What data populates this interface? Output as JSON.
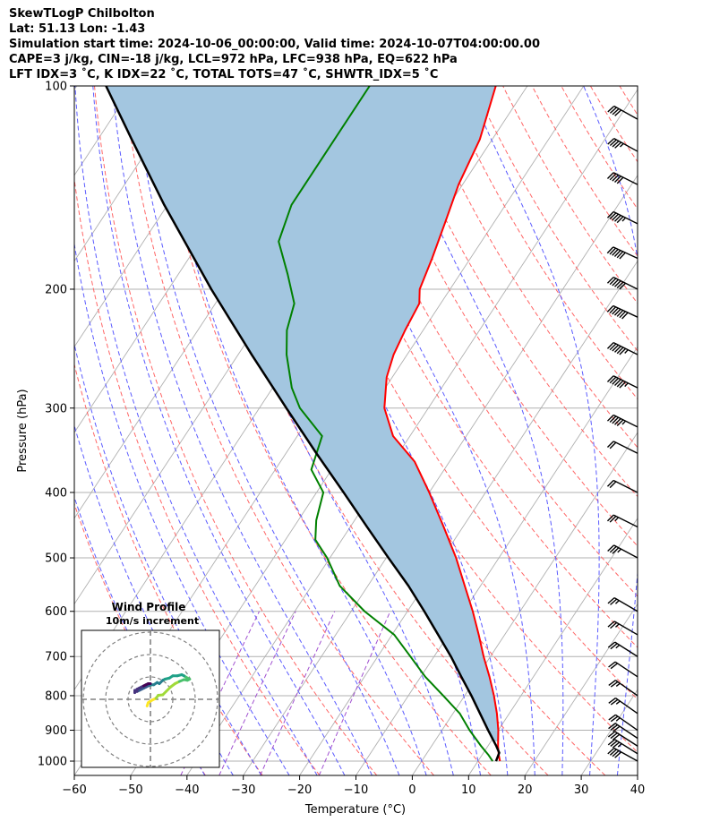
{
  "header": {
    "line1": "SkewTLogP Chilbolton",
    "line2": "Lat: 51.13   Lon: -1.43",
    "line3": "Simulation start time: 2024-10-06_00:00:00, Valid time: 2024-10-07T04:00:00.00",
    "line4": "CAPE=3 j/kg, CIN=-18 j/kg, LCL=972 hPa, LFC=938 hPa, EQ=622 hPa",
    "line5": "LFT IDX=3 ˚C, K IDX=22 ˚C, TOTAL TOTS=47 ˚C, SHWTR_IDX=5 ˚C"
  },
  "chart_data": {
    "type": "line",
    "subtype": "skew-t log-p",
    "xlabel": "Temperature ($^\\circ$C)",
    "ylabel": "Pressure (hPa)",
    "xlim": [
      -60,
      40
    ],
    "ylim": [
      1050,
      100
    ],
    "yscale": "log",
    "x_ticks": [
      "−60",
      "−50",
      "−40",
      "−30",
      "−20",
      "−10",
      "0",
      "10",
      "20",
      "30",
      "40"
    ],
    "y_ticks": [
      {
        "p": 100,
        "label": "100"
      },
      {
        "p": 200,
        "label": "200"
      },
      {
        "p": 300,
        "label": "300"
      },
      {
        "p": 400,
        "label": "400"
      },
      {
        "p": 500,
        "label": "500"
      },
      {
        "p": 600,
        "label": "600"
      },
      {
        "p": 700,
        "label": "700"
      },
      {
        "p": 800,
        "label": "800"
      },
      {
        "p": 900,
        "label": "900"
      },
      {
        "p": 1000,
        "label": "1000"
      }
    ],
    "grid": true,
    "colors": {
      "temperature": "#ff0000",
      "dewpoint": "#008000",
      "parcel": "#000000",
      "cape_fill": "#a3c6e0",
      "dry_adiabats": "#ff6666",
      "moist_adiabats": "#5b5bff",
      "mixing_ratio": "#a050d0",
      "isotherms": "#b0b0b0"
    },
    "series": [
      {
        "key": "temperature",
        "points": [
          [
            1000,
            13.9
          ],
          [
            980,
            13.0
          ],
          [
            950,
            11.8
          ],
          [
            900,
            10.0
          ],
          [
            850,
            7.8
          ],
          [
            800,
            5.2
          ],
          [
            750,
            2.2
          ],
          [
            700,
            -1.2
          ],
          [
            650,
            -4.6
          ],
          [
            600,
            -8.4
          ],
          [
            550,
            -12.8
          ],
          [
            500,
            -17.6
          ],
          [
            450,
            -23.4
          ],
          [
            400,
            -30.0
          ],
          [
            360,
            -36.2
          ],
          [
            330,
            -43.0
          ],
          [
            300,
            -47.8
          ],
          [
            270,
            -51.0
          ],
          [
            250,
            -52.4
          ],
          [
            230,
            -53.2
          ],
          [
            210,
            -53.8
          ],
          [
            200,
            -55.4
          ],
          [
            180,
            -56.8
          ],
          [
            160,
            -58.6
          ],
          [
            140,
            -60.7
          ],
          [
            120,
            -62.2
          ],
          [
            100,
            -65.6
          ]
        ]
      },
      {
        "key": "dewpoint",
        "points": [
          [
            1000,
            12.6
          ],
          [
            980,
            11.2
          ],
          [
            950,
            8.8
          ],
          [
            900,
            4.9
          ],
          [
            850,
            1.2
          ],
          [
            800,
            -3.8
          ],
          [
            750,
            -9.2
          ],
          [
            700,
            -14.2
          ],
          [
            650,
            -19.6
          ],
          [
            600,
            -27.6
          ],
          [
            550,
            -35.0
          ],
          [
            500,
            -40.5
          ],
          [
            470,
            -44.7
          ],
          [
            440,
            -46.8
          ],
          [
            400,
            -48.8
          ],
          [
            370,
            -53.6
          ],
          [
            330,
            -55.6
          ],
          [
            300,
            -62.8
          ],
          [
            280,
            -66.6
          ],
          [
            250,
            -71.4
          ],
          [
            230,
            -74.2
          ],
          [
            210,
            -76.0
          ],
          [
            190,
            -80.6
          ],
          [
            170,
            -86.0
          ],
          [
            150,
            -88.0
          ],
          [
            130,
            -88.0
          ],
          [
            110,
            -88.0
          ],
          [
            100,
            -88.0
          ]
        ]
      },
      {
        "key": "parcel",
        "points": [
          [
            1000,
            13.2
          ],
          [
            972,
            12.8
          ],
          [
            950,
            11.5
          ],
          [
            900,
            8.2
          ],
          [
            850,
            4.8
          ],
          [
            800,
            1.2
          ],
          [
            750,
            -2.8
          ],
          [
            700,
            -7.0
          ],
          [
            650,
            -11.8
          ],
          [
            600,
            -17.0
          ],
          [
            550,
            -22.8
          ],
          [
            500,
            -29.6
          ],
          [
            450,
            -37.0
          ],
          [
            400,
            -45.2
          ],
          [
            350,
            -54.6
          ],
          [
            300,
            -65.2
          ],
          [
            250,
            -77.6
          ],
          [
            200,
            -92.4
          ],
          [
            150,
            -110.6
          ],
          [
            120,
            -124.0
          ],
          [
            100,
            -134.8
          ]
        ]
      }
    ],
    "wind_barbs": [
      {
        "p": 1000,
        "u": -18,
        "v": 10
      },
      {
        "p": 975,
        "u": -16,
        "v": 10
      },
      {
        "p": 950,
        "u": -14,
        "v": 9
      },
      {
        "p": 925,
        "u": -12,
        "v": 8
      },
      {
        "p": 900,
        "u": -10,
        "v": 7
      },
      {
        "p": 850,
        "u": -10,
        "v": 7
      },
      {
        "p": 800,
        "u": -10,
        "v": 7
      },
      {
        "p": 750,
        "u": -9,
        "v": 6
      },
      {
        "p": 700,
        "u": -11,
        "v": 7
      },
      {
        "p": 650,
        "u": -12,
        "v": 7
      },
      {
        "p": 600,
        "u": -12,
        "v": 7
      },
      {
        "p": 500,
        "u": -15,
        "v": 8
      },
      {
        "p": 450,
        "u": -12,
        "v": 6
      },
      {
        "p": 400,
        "u": -10,
        "v": 5
      },
      {
        "p": 350,
        "u": -10,
        "v": 5
      },
      {
        "p": 320,
        "u": -26,
        "v": 13
      },
      {
        "p": 280,
        "u": -30,
        "v": 15
      },
      {
        "p": 250,
        "u": -30,
        "v": 15
      },
      {
        "p": 220,
        "u": -32,
        "v": 15
      },
      {
        "p": 200,
        "u": -28,
        "v": 14
      },
      {
        "p": 180,
        "u": -28,
        "v": 13
      },
      {
        "p": 160,
        "u": -26,
        "v": 13
      },
      {
        "p": 140,
        "u": -24,
        "v": 12
      },
      {
        "p": 125,
        "u": -20,
        "v": 11
      },
      {
        "p": 112,
        "u": -18,
        "v": 10
      }
    ],
    "hodograph": {
      "title": "Wind Profile",
      "subtitle": "10m/s increment",
      "rings": [
        10,
        20,
        30
      ],
      "points": [
        [
          -1.5,
          -3.0
        ],
        [
          -1.0,
          -1.5
        ],
        [
          0.5,
          -0.5
        ],
        [
          2.5,
          0.5
        ],
        [
          3.5,
          1.8
        ],
        [
          5.5,
          2.0
        ],
        [
          7.0,
          3.5
        ],
        [
          9.0,
          5.5
        ],
        [
          11.0,
          7.0
        ],
        [
          13.0,
          8.0
        ],
        [
          15.0,
          8.8
        ],
        [
          16.5,
          8.5
        ],
        [
          17.5,
          9.0
        ],
        [
          16.5,
          9.5
        ],
        [
          15.0,
          10.5
        ],
        [
          14.0,
          11.0
        ],
        [
          12.0,
          10.5
        ],
        [
          10.0,
          10.5
        ],
        [
          8.5,
          9.5
        ],
        [
          6.5,
          9.0
        ],
        [
          5.5,
          8.5
        ],
        [
          4.0,
          7.0
        ],
        [
          3.0,
          7.5
        ],
        [
          1.5,
          6.5
        ],
        [
          0.5,
          6.5
        ],
        [
          -1.0,
          6.0
        ],
        [
          -2.0,
          5.5
        ],
        [
          -3.0,
          5.0
        ],
        [
          -4.0,
          4.5
        ],
        [
          -5.0,
          4.0
        ],
        [
          -6.0,
          3.5
        ],
        [
          -7.0,
          4.0
        ],
        [
          -7.0,
          3.0
        ],
        [
          -6.0,
          4.5
        ],
        [
          -5.0,
          5.0
        ],
        [
          -4.0,
          5.5
        ],
        [
          -3.0,
          6.0
        ],
        [
          -2.0,
          6.5
        ],
        [
          -1.0,
          7.0
        ],
        [
          0.0,
          7.0
        ]
      ]
    }
  }
}
